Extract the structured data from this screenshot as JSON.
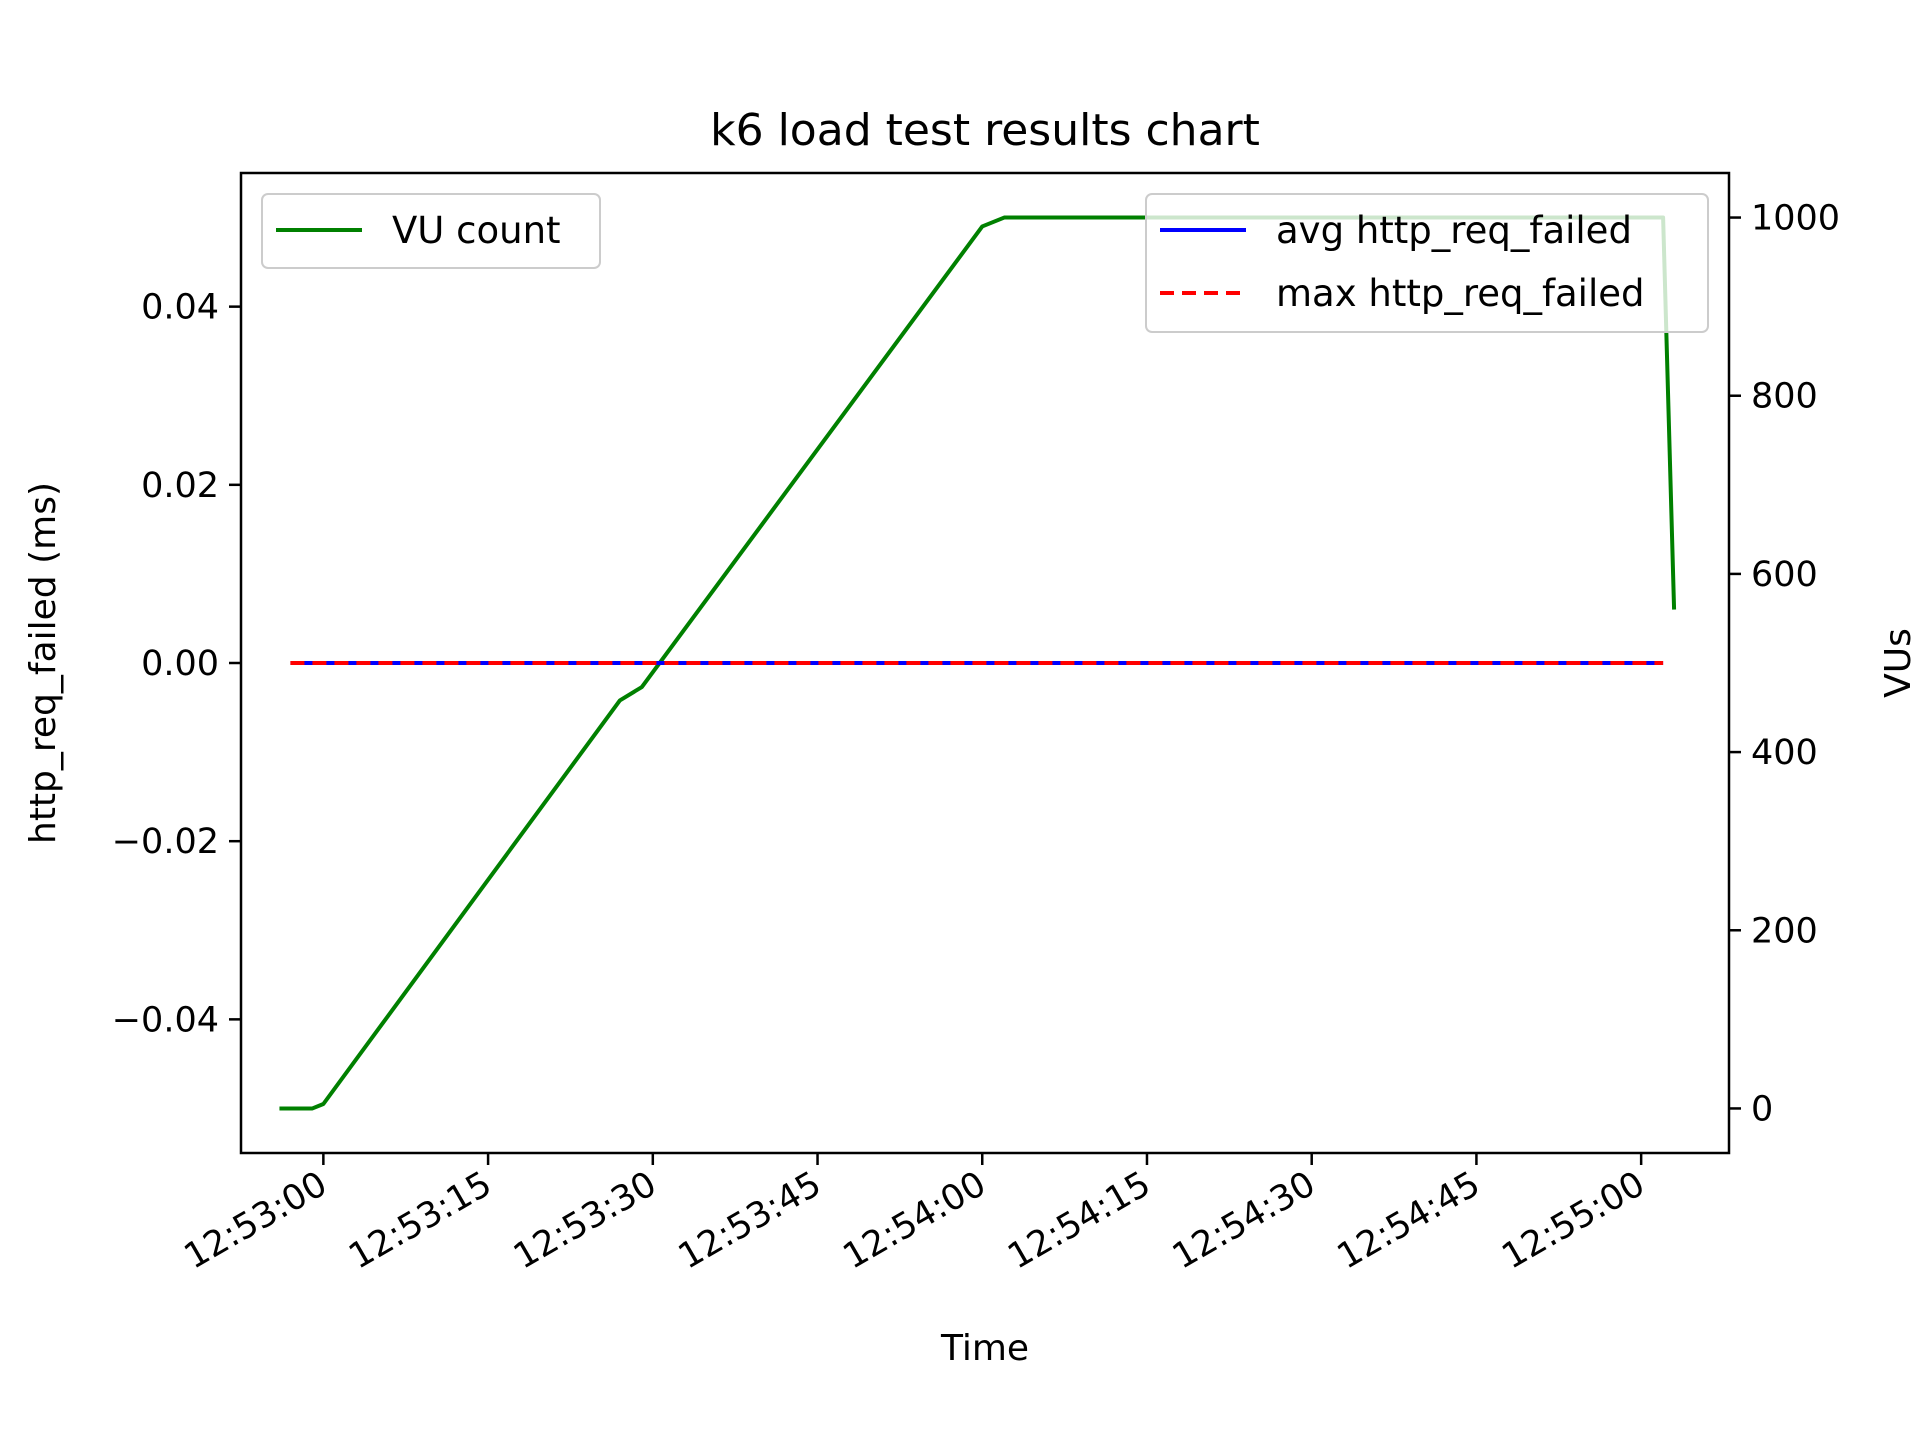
{
  "chart_data": {
    "type": "line",
    "title": "k6 load test results chart",
    "xlabel": "Time",
    "ylabel_left": "http_req_failed (ms)",
    "ylabel_right": "VUs",
    "x_ticks": [
      "12:53:00",
      "12:53:15",
      "12:53:30",
      "12:53:45",
      "12:54:00",
      "12:54:15",
      "12:54:30",
      "12:54:45",
      "12:55:00"
    ],
    "y_left_ticks": [
      "0.04",
      "0.02",
      "0.00",
      "−0.02",
      "−0.04"
    ],
    "y_left_tick_values": [
      0.04,
      0.02,
      0.0,
      -0.02,
      -0.04
    ],
    "y_right_ticks": [
      "1000",
      "800",
      "600",
      "400",
      "200",
      "0"
    ],
    "y_right_tick_values": [
      1000,
      800,
      600,
      400,
      200,
      0
    ],
    "x_range": [
      "12:52:52.5",
      "12:55:08"
    ],
    "y_left_range": [
      -0.055,
      0.055
    ],
    "y_right_range": [
      -50,
      1050
    ],
    "grid": false,
    "series": [
      {
        "name": "VU count",
        "axis": "right",
        "color": "#008000",
        "style": "solid",
        "x": [
          "12:52:56",
          "12:52:59",
          "12:53:00",
          "12:53:27",
          "12:53:29",
          "12:54:00",
          "12:54:02",
          "12:55:02",
          "12:55:03"
        ],
        "values": [
          0,
          0,
          5,
          458,
          473,
          990,
          1000,
          1000,
          560
        ]
      },
      {
        "name": "avg http_req_failed",
        "axis": "left",
        "color": "#0000ff",
        "style": "solid",
        "x": [
          "12:52:57",
          "12:55:02"
        ],
        "values": [
          0,
          0
        ]
      },
      {
        "name": "max http_req_failed",
        "axis": "left",
        "color": "#ff0000",
        "style": "dashed",
        "x": [
          "12:52:57",
          "12:55:02"
        ],
        "values": [
          0,
          0
        ]
      }
    ],
    "legends": [
      {
        "placement": "upper-left",
        "entries": [
          "VU count"
        ]
      },
      {
        "placement": "upper-right",
        "entries": [
          "avg http_req_failed",
          "max http_req_failed"
        ]
      }
    ]
  }
}
